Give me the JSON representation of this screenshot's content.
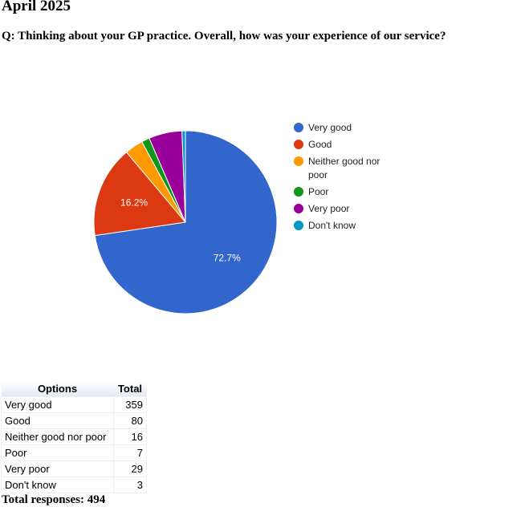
{
  "page": {
    "title": "April 2025",
    "question": "Q: Thinking about your GP practice. Overall, how was your experience of our service?",
    "total_label": "Total responses:",
    "total_value": "494"
  },
  "chart_data": {
    "type": "pie",
    "categories": [
      "Very good",
      "Good",
      "Neither good nor poor",
      "Poor",
      "Very poor",
      "Don't know"
    ],
    "values": [
      359,
      80,
      16,
      7,
      29,
      3
    ],
    "legend_labels": [
      "Very good",
      "Good",
      "Neither good nor poor",
      "Poor",
      "Very poor",
      "Don't know"
    ],
    "slice_labels": [
      "72.7%",
      "16.2%",
      "",
      "",
      "",
      ""
    ],
    "colors": [
      "#3366cc",
      "#dc3912",
      "#ff9900",
      "#109618",
      "#990099",
      "#0099c6"
    ],
    "legend_position": "right"
  },
  "table": {
    "headers": [
      "Options",
      "Total"
    ],
    "rows": [
      [
        "Very good",
        "359"
      ],
      [
        "Good",
        "80"
      ],
      [
        "Neither good nor poor",
        "16"
      ],
      [
        "Poor",
        "7"
      ],
      [
        "Very poor",
        "29"
      ],
      [
        "Don't know",
        "3"
      ]
    ]
  }
}
